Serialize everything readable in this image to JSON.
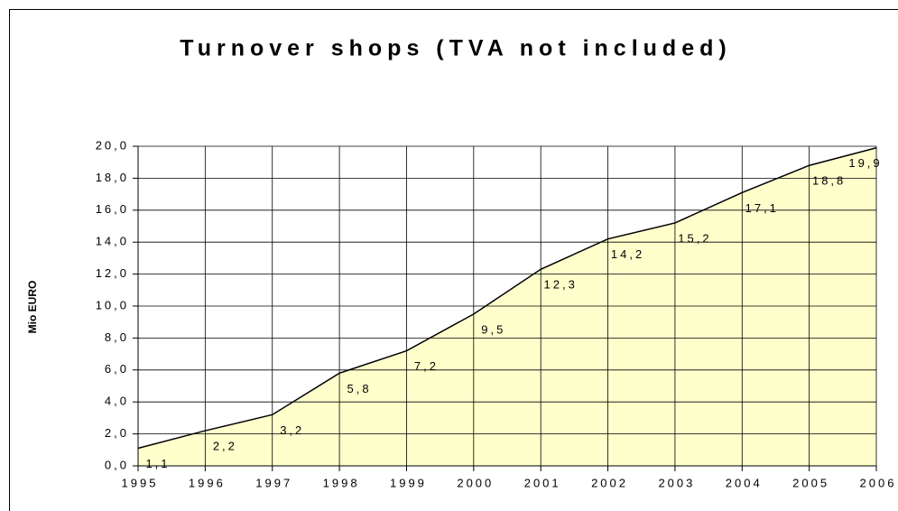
{
  "chart_data": {
    "type": "area",
    "title": "Turnover shops (TVA not included)",
    "y_label": "Mio EURO",
    "categories": [
      "1995",
      "1996",
      "1997",
      "1998",
      "1999",
      "2000",
      "2001",
      "2002",
      "2003",
      "2004",
      "2005",
      "2006"
    ],
    "values": [
      1.1,
      2.2,
      3.2,
      5.8,
      7.2,
      9.5,
      12.3,
      14.2,
      15.2,
      17.1,
      18.8,
      19.9
    ],
    "value_labels": [
      "1,1",
      "2,2",
      "3,2",
      "5,8",
      "7,2",
      "9,5",
      "12,3",
      "14,2",
      "15,2",
      "17,1",
      "18,8",
      "19,9"
    ],
    "color": "#ffffcc",
    "line_color": "#000000",
    "ylim": [
      0,
      20
    ],
    "yticks": [
      {
        "value": 0,
        "label": "0,0"
      },
      {
        "value": 2,
        "label": "2,0"
      },
      {
        "value": 4,
        "label": "4,0"
      },
      {
        "value": 6,
        "label": "6,0"
      },
      {
        "value": 8,
        "label": "8,0"
      },
      {
        "value": 10,
        "label": "10,0"
      },
      {
        "value": 12,
        "label": "12,0"
      },
      {
        "value": 14,
        "label": "14,0"
      },
      {
        "value": 16,
        "label": "16,0"
      },
      {
        "value": 18,
        "label": "18,0"
      },
      {
        "value": 20,
        "label": "20,0"
      }
    ],
    "grid": true
  }
}
